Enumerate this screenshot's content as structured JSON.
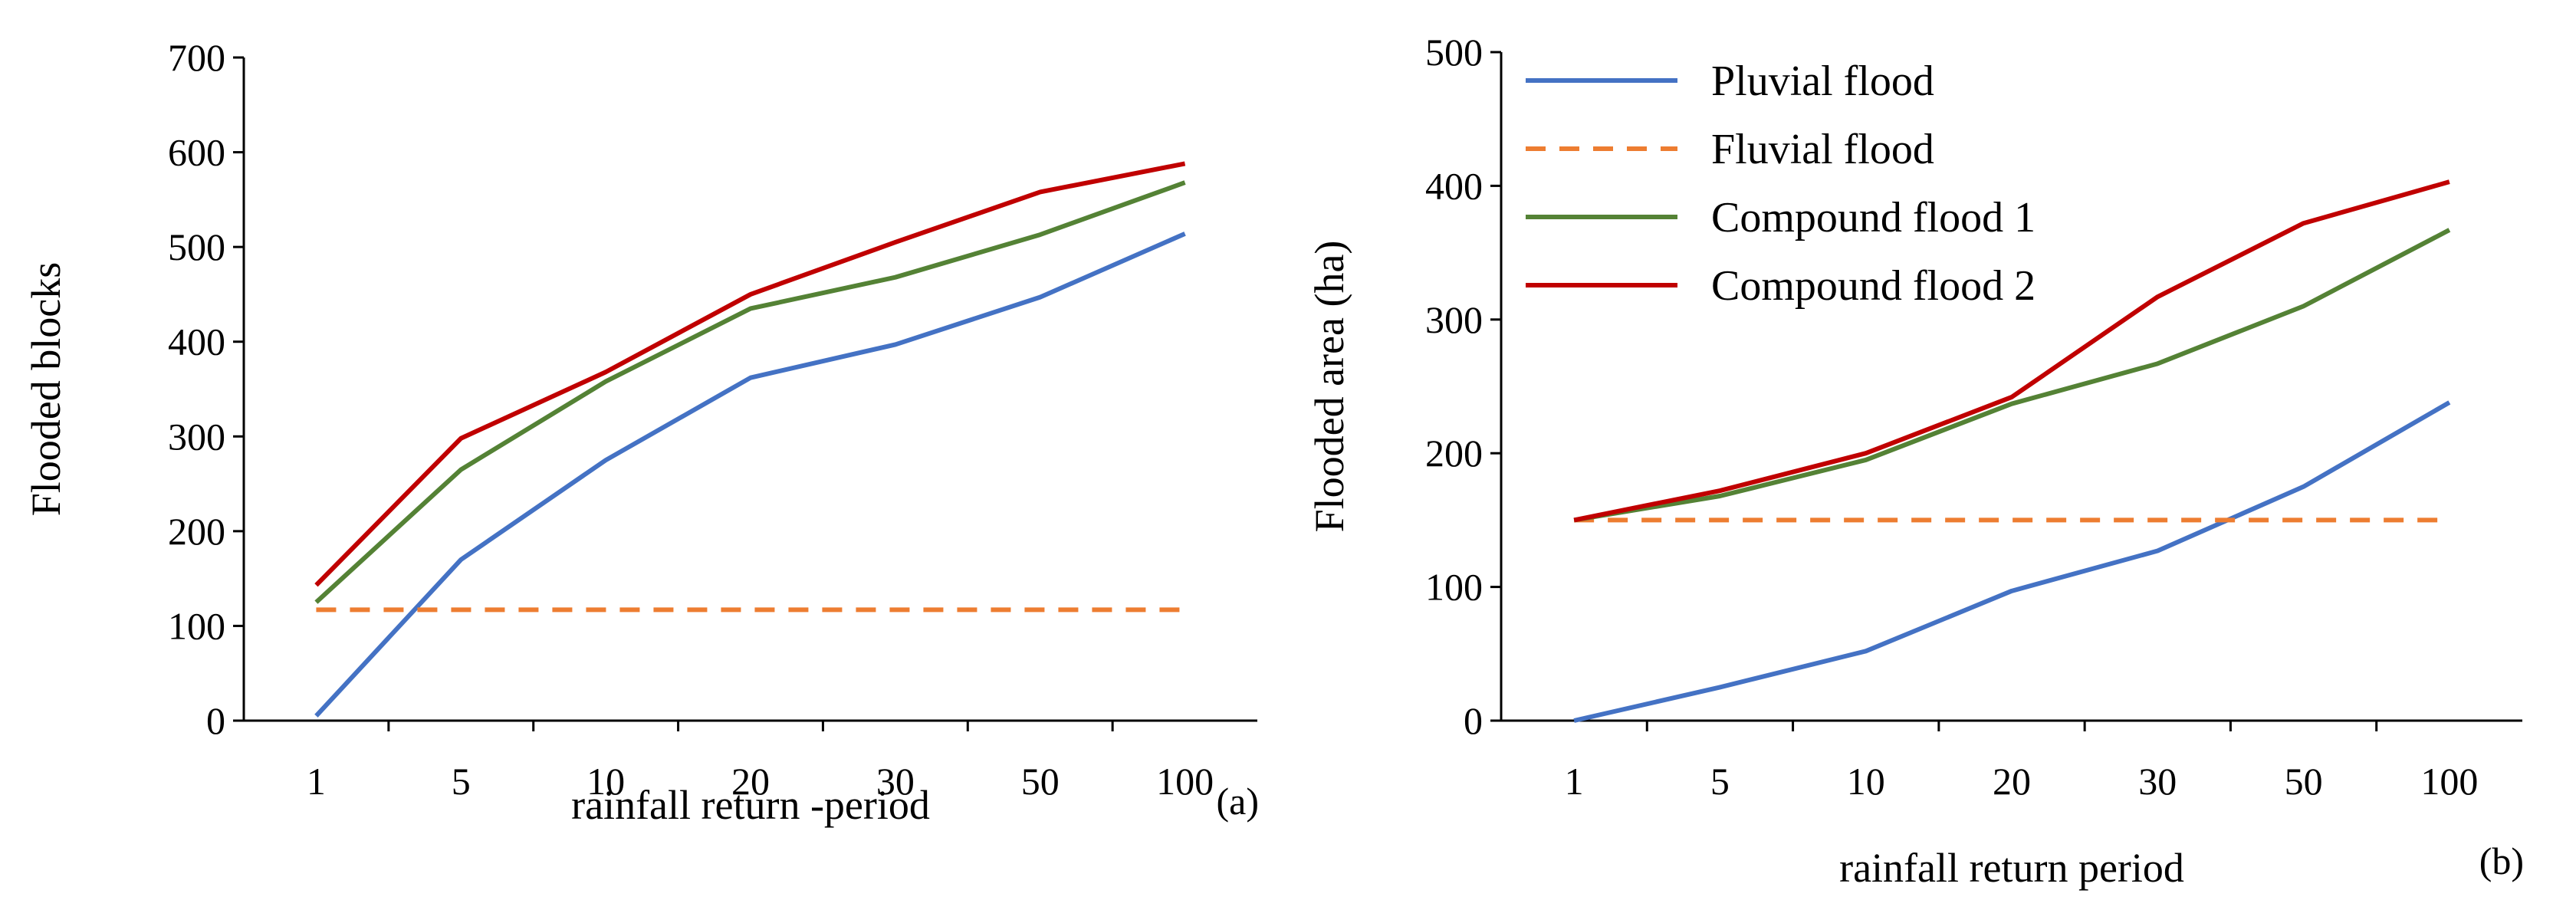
{
  "chart_data": [
    {
      "type": "line",
      "panel_label": "(a)",
      "title": "",
      "xlabel": "rainfall return -period",
      "ylabel": "Flooded blocks",
      "categories": [
        "1",
        "5",
        "10",
        "20",
        "30",
        "50",
        "100"
      ],
      "ylim": [
        0,
        700
      ],
      "yticks": [
        "0",
        "100",
        "200",
        "300",
        "400",
        "500",
        "600",
        "700"
      ],
      "grid": false,
      "series": [
        {
          "name": "Pluvial flood",
          "color": "#4472C4",
          "dash": false,
          "values": [
            5,
            170,
            275,
            362,
            397,
            447,
            514
          ]
        },
        {
          "name": "Fluvial flood",
          "color": "#ED7D31",
          "dash": true,
          "values": [
            117,
            117,
            117,
            117,
            117,
            117,
            117
          ]
        },
        {
          "name": "Compound flood 1",
          "color": "#548235",
          "dash": false,
          "values": [
            125,
            265,
            358,
            435,
            468,
            513,
            568
          ]
        },
        {
          "name": "Compound flood 2",
          "color": "#C00000",
          "dash": false,
          "values": [
            143,
            298,
            368,
            450,
            505,
            558,
            588
          ]
        }
      ]
    },
    {
      "type": "line",
      "panel_label": "(b)",
      "title": "",
      "xlabel": "rainfall return period",
      "ylabel": "Flooded  area (ha)",
      "categories": [
        "1",
        "5",
        "10",
        "20",
        "30",
        "50",
        "100"
      ],
      "ylim": [
        0,
        500
      ],
      "yticks": [
        "0",
        "100",
        "200",
        "300",
        "400",
        "500"
      ],
      "grid": false,
      "legend": "top-left",
      "series": [
        {
          "name": "Pluvial flood",
          "color": "#4472C4",
          "dash": false,
          "values": [
            0,
            25,
            52,
            97,
            127,
            175,
            238
          ]
        },
        {
          "name": "Fluvial flood",
          "color": "#ED7D31",
          "dash": true,
          "values": [
            150,
            150,
            150,
            150,
            150,
            150,
            150
          ]
        },
        {
          "name": "Compound flood 1",
          "color": "#548235",
          "dash": false,
          "values": [
            150,
            168,
            195,
            237,
            267,
            310,
            367
          ]
        },
        {
          "name": "Compound flood 2",
          "color": "#C00000",
          "dash": false,
          "values": [
            150,
            172,
            200,
            242,
            317,
            372,
            403
          ]
        }
      ]
    }
  ]
}
